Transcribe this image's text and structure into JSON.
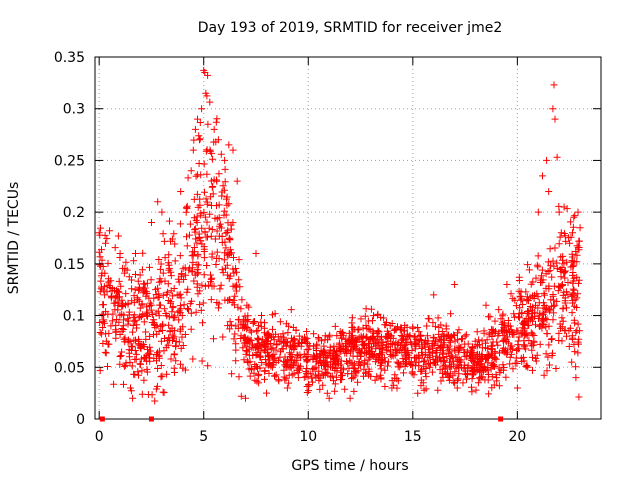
{
  "chart_data": {
    "type": "scatter",
    "title": "Day 193 of 2019, SRMTID for receiver jme2",
    "xlabel": "GPS time / hours",
    "ylabel": "SRMTID / TECUs",
    "xlim": [
      -0.2,
      24.0
    ],
    "ylim": [
      0,
      0.35
    ],
    "xticks": [
      0,
      5,
      10,
      15,
      20
    ],
    "xtick_labels": [
      "0",
      "5",
      "10",
      "15",
      "20"
    ],
    "yticks": [
      0,
      0.05,
      0.1,
      0.15,
      0.2,
      0.25,
      0.3,
      0.35
    ],
    "ytick_labels": [
      "0",
      "0.05",
      "0.1",
      "0.15",
      "0.2",
      "0.25",
      "0.3",
      "0.35"
    ],
    "grid": true,
    "marker": "+",
    "color": "#ff0000",
    "baseline_markers_x": [
      0.15,
      2.5,
      19.2
    ],
    "series": [
      {
        "name": "SRMTID",
        "envelope_x": [
          0,
          1,
          2,
          3,
          4,
          4.5,
          5,
          5.5,
          6,
          6.5,
          7,
          7.5,
          8,
          9,
          10,
          11,
          12,
          13,
          14,
          15,
          16,
          17,
          18,
          19,
          20,
          20.5,
          21,
          21.5,
          22,
          22.5,
          23
        ],
        "envelope_y": [
          0.12,
          0.1,
          0.09,
          0.1,
          0.12,
          0.15,
          0.19,
          0.2,
          0.18,
          0.12,
          0.08,
          0.07,
          0.065,
          0.065,
          0.06,
          0.055,
          0.065,
          0.07,
          0.07,
          0.068,
          0.065,
          0.06,
          0.06,
          0.065,
          0.085,
          0.095,
          0.1,
          0.11,
          0.12,
          0.13,
          0.12
        ],
        "spread_y": [
          0.035,
          0.03,
          0.03,
          0.035,
          0.04,
          0.05,
          0.06,
          0.06,
          0.05,
          0.035,
          0.02,
          0.018,
          0.015,
          0.015,
          0.015,
          0.013,
          0.015,
          0.016,
          0.016,
          0.015,
          0.015,
          0.015,
          0.015,
          0.016,
          0.02,
          0.022,
          0.025,
          0.03,
          0.035,
          0.04,
          0.035
        ],
        "outliers": [
          [
            0.0,
            0.18
          ],
          [
            0.3,
            0.17
          ],
          [
            0.5,
            0.182
          ],
          [
            1.0,
            0.16
          ],
          [
            1.5,
            0.03
          ],
          [
            1.6,
            0.02
          ],
          [
            2.5,
            0.19
          ],
          [
            2.8,
            0.21
          ],
          [
            3.0,
            0.2
          ],
          [
            3.6,
            0.045
          ],
          [
            3.9,
            0.22
          ],
          [
            4.4,
            0.24
          ],
          [
            4.5,
            0.26
          ],
          [
            4.6,
            0.28
          ],
          [
            4.7,
            0.29
          ],
          [
            4.8,
            0.27
          ],
          [
            4.9,
            0.3
          ],
          [
            5.0,
            0.337
          ],
          [
            5.05,
            0.335
          ],
          [
            5.1,
            0.315
          ],
          [
            5.2,
            0.285
          ],
          [
            5.3,
            0.26
          ],
          [
            5.5,
            0.28
          ],
          [
            5.6,
            0.287
          ],
          [
            5.7,
            0.27
          ],
          [
            6.0,
            0.25
          ],
          [
            6.2,
            0.265
          ],
          [
            6.4,
            0.26
          ],
          [
            6.6,
            0.23
          ],
          [
            7.0,
            0.02
          ],
          [
            7.5,
            0.16
          ],
          [
            8.0,
            0.025
          ],
          [
            9.0,
            0.03
          ],
          [
            11.0,
            0.02
          ],
          [
            12.0,
            0.02
          ],
          [
            14.0,
            0.03
          ],
          [
            15.5,
            0.035
          ],
          [
            16.0,
            0.12
          ],
          [
            17.0,
            0.13
          ],
          [
            18.5,
            0.11
          ],
          [
            19.0,
            0.04
          ],
          [
            19.5,
            0.13
          ],
          [
            20.0,
            0.03
          ],
          [
            20.5,
            0.05
          ],
          [
            21.0,
            0.2
          ],
          [
            21.2,
            0.235
          ],
          [
            21.4,
            0.25
          ],
          [
            21.5,
            0.22
          ],
          [
            21.7,
            0.3
          ],
          [
            21.75,
            0.323
          ],
          [
            21.8,
            0.29
          ],
          [
            21.9,
            0.253
          ],
          [
            22.0,
            0.2
          ],
          [
            22.1,
            0.18
          ],
          [
            22.5,
            0.17
          ],
          [
            22.7,
            0.195
          ],
          [
            22.9,
            0.2
          ],
          [
            23.0,
            0.185
          ],
          [
            22.8,
            0.04
          ],
          [
            22.6,
            0.055
          ]
        ]
      }
    ]
  }
}
